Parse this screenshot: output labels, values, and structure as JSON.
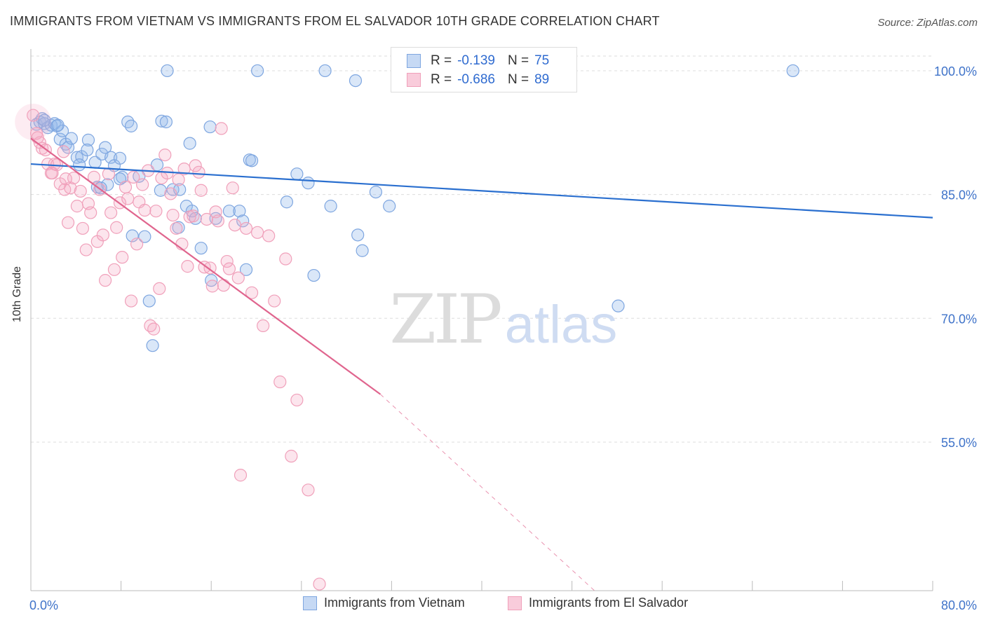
{
  "header": {
    "title": "IMMIGRANTS FROM VIETNAM VS IMMIGRANTS FROM EL SALVADOR 10TH GRADE CORRELATION CHART",
    "source": "Source: ZipAtlas.com"
  },
  "watermark": {
    "zip": "ZIP",
    "atlas": "atlas"
  },
  "stats": [
    {
      "r_label": "R =",
      "r_value": "-0.139",
      "n_label": "N =",
      "n_value": "75",
      "color": "#7ea6e0"
    },
    {
      "r_label": "R =",
      "r_value": "-0.686",
      "n_label": "N =",
      "n_value": "89",
      "color": "#f0a0ba"
    }
  ],
  "legend": [
    {
      "label": "Immigrants from Vietnam",
      "color": "#7ea6e0"
    },
    {
      "label": "Immigrants from El Salvador",
      "color": "#f0a0ba"
    }
  ],
  "chart_data": {
    "type": "scatter",
    "title": "IMMIGRANTS FROM VIETNAM VS IMMIGRANTS FROM EL SALVADOR 10TH GRADE CORRELATION CHART",
    "xlabel": "",
    "ylabel": "10th Grade",
    "xlim": [
      0,
      80
    ],
    "ylim": [
      37,
      102
    ],
    "x_tick_labels": [
      "0.0%",
      "80.0%"
    ],
    "y_ticks": [
      55,
      70,
      85,
      100
    ],
    "y_tick_labels": [
      "55.0%",
      "70.0%",
      "85.0%",
      "100.0%"
    ],
    "grid": "horizontal dashed",
    "legend_position": "bottom-center",
    "series": [
      {
        "name": "Immigrants from Vietnam",
        "color": "#7ea6e0",
        "line_color": "#2a6fcf",
        "trend": {
          "x": [
            0,
            80
          ],
          "y": [
            88.7,
            82.2
          ]
        },
        "points": [
          [
            0.5,
            93.5
          ],
          [
            0.8,
            93.8
          ],
          [
            1.0,
            94.2
          ],
          [
            1.2,
            93.6
          ],
          [
            1.5,
            93.1
          ],
          [
            1.8,
            93.4
          ],
          [
            2.1,
            93.6
          ],
          [
            2.3,
            93.3
          ],
          [
            2.6,
            91.7
          ],
          [
            2.8,
            92.7
          ],
          [
            3.1,
            91.1
          ],
          [
            3.3,
            90.7
          ],
          [
            3.6,
            91.8
          ],
          [
            4.1,
            89.5
          ],
          [
            4.5,
            89.6
          ],
          [
            5.1,
            91.6
          ],
          [
            5.0,
            90.4
          ],
          [
            5.7,
            88.9
          ],
          [
            5.9,
            85.9
          ],
          [
            6.3,
            89.9
          ],
          [
            6.6,
            90.7
          ],
          [
            6.8,
            86.2
          ],
          [
            7.1,
            89.5
          ],
          [
            7.4,
            88.5
          ],
          [
            7.9,
            89.4
          ],
          [
            8.1,
            87.1
          ],
          [
            8.6,
            93.8
          ],
          [
            8.9,
            93.3
          ],
          [
            9.0,
            80.0
          ],
          [
            9.6,
            87.2
          ],
          [
            10.1,
            79.9
          ],
          [
            10.5,
            72.1
          ],
          [
            10.8,
            66.7
          ],
          [
            11.2,
            88.6
          ],
          [
            11.6,
            93.9
          ],
          [
            12.0,
            93.8
          ],
          [
            12.1,
            100.0
          ],
          [
            12.6,
            85.6
          ],
          [
            13.1,
            81.0
          ],
          [
            13.8,
            83.6
          ],
          [
            14.1,
            91.2
          ],
          [
            14.3,
            83.0
          ],
          [
            14.6,
            82.1
          ],
          [
            15.1,
            78.5
          ],
          [
            15.9,
            93.2
          ],
          [
            16.0,
            74.6
          ],
          [
            16.4,
            82.1
          ],
          [
            17.6,
            83.0
          ],
          [
            18.5,
            83.0
          ],
          [
            18.8,
            81.8
          ],
          [
            19.1,
            75.9
          ],
          [
            19.4,
            89.2
          ],
          [
            19.6,
            89.1
          ],
          [
            20.1,
            100.0
          ],
          [
            22.7,
            84.1
          ],
          [
            23.6,
            87.5
          ],
          [
            24.6,
            86.4
          ],
          [
            25.1,
            75.2
          ],
          [
            26.1,
            100.0
          ],
          [
            26.6,
            83.6
          ],
          [
            28.8,
            98.8
          ],
          [
            29.0,
            80.1
          ],
          [
            29.4,
            78.2
          ],
          [
            30.6,
            85.3
          ],
          [
            31.8,
            83.6
          ],
          [
            40.5,
            100.0
          ],
          [
            52.1,
            71.5
          ],
          [
            67.6,
            100.0
          ],
          [
            1.2,
            94.0
          ],
          [
            2.4,
            93.4
          ],
          [
            4.3,
            88.6
          ],
          [
            6.2,
            85.8
          ],
          [
            7.9,
            86.9
          ],
          [
            11.5,
            85.5
          ],
          [
            13.2,
            85.6
          ]
        ]
      },
      {
        "name": "Immigrants from El Salvador",
        "color": "#f0a0ba",
        "line_color": "#e0658e",
        "trend": {
          "x": [
            0,
            31
          ],
          "y": [
            91.8,
            60.8
          ]
        },
        "trend_ext": {
          "x": [
            31,
            50
          ],
          "y": [
            60.8,
            37.0
          ]
        },
        "points": [
          [
            0.2,
            94.6
          ],
          [
            0.5,
            92.4
          ],
          [
            0.8,
            91.3
          ],
          [
            1.0,
            90.6
          ],
          [
            1.3,
            90.4
          ],
          [
            1.5,
            88.7
          ],
          [
            1.8,
            87.6
          ],
          [
            2.1,
            88.7
          ],
          [
            2.3,
            88.6
          ],
          [
            2.6,
            86.3
          ],
          [
            2.9,
            90.2
          ],
          [
            3.0,
            85.6
          ],
          [
            3.3,
            81.6
          ],
          [
            3.5,
            85.8
          ],
          [
            3.8,
            87.0
          ],
          [
            4.1,
            83.6
          ],
          [
            4.4,
            85.4
          ],
          [
            4.6,
            80.9
          ],
          [
            4.9,
            78.3
          ],
          [
            5.1,
            83.9
          ],
          [
            5.3,
            82.8
          ],
          [
            5.6,
            87.1
          ],
          [
            5.9,
            79.3
          ],
          [
            6.1,
            85.6
          ],
          [
            6.4,
            80.1
          ],
          [
            6.6,
            74.6
          ],
          [
            6.9,
            87.5
          ],
          [
            7.1,
            82.8
          ],
          [
            7.4,
            75.9
          ],
          [
            7.6,
            81.0
          ],
          [
            7.9,
            84.0
          ],
          [
            8.1,
            77.4
          ],
          [
            8.4,
            85.9
          ],
          [
            8.6,
            84.5
          ],
          [
            8.9,
            72.1
          ],
          [
            9.1,
            87.1
          ],
          [
            9.4,
            79.0
          ],
          [
            9.6,
            84.1
          ],
          [
            9.9,
            86.2
          ],
          [
            10.1,
            83.1
          ],
          [
            10.4,
            87.9
          ],
          [
            10.6,
            69.1
          ],
          [
            10.9,
            68.7
          ],
          [
            11.1,
            83.0
          ],
          [
            11.4,
            73.6
          ],
          [
            11.6,
            87.0
          ],
          [
            11.9,
            89.8
          ],
          [
            12.1,
            87.6
          ],
          [
            12.4,
            85.1
          ],
          [
            12.6,
            82.5
          ],
          [
            12.9,
            80.9
          ],
          [
            13.1,
            86.8
          ],
          [
            13.4,
            79.0
          ],
          [
            13.6,
            88.1
          ],
          [
            13.9,
            76.3
          ],
          [
            14.1,
            82.3
          ],
          [
            14.4,
            82.4
          ],
          [
            14.6,
            88.5
          ],
          [
            14.9,
            87.7
          ],
          [
            15.1,
            85.5
          ],
          [
            15.4,
            76.2
          ],
          [
            15.6,
            82.0
          ],
          [
            15.9,
            76.1
          ],
          [
            16.1,
            73.9
          ],
          [
            16.4,
            82.9
          ],
          [
            16.6,
            81.8
          ],
          [
            16.9,
            93.0
          ],
          [
            17.1,
            74.0
          ],
          [
            17.4,
            76.9
          ],
          [
            17.6,
            76.0
          ],
          [
            17.9,
            85.8
          ],
          [
            18.1,
            81.3
          ],
          [
            18.4,
            74.9
          ],
          [
            18.6,
            51.0
          ],
          [
            19.1,
            80.9
          ],
          [
            19.6,
            73.1
          ],
          [
            20.1,
            80.4
          ],
          [
            20.6,
            69.1
          ],
          [
            21.1,
            80.0
          ],
          [
            21.6,
            72.1
          ],
          [
            22.1,
            62.3
          ],
          [
            22.6,
            77.2
          ],
          [
            23.1,
            53.3
          ],
          [
            23.6,
            60.1
          ],
          [
            24.6,
            49.2
          ],
          [
            25.6,
            37.8
          ],
          [
            0.6,
            91.9
          ],
          [
            1.9,
            87.6
          ],
          [
            3.1,
            86.9
          ]
        ]
      }
    ]
  }
}
